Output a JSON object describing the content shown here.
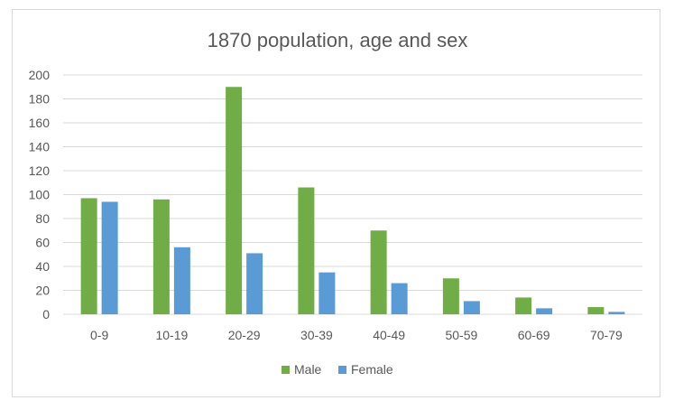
{
  "chart_data": {
    "type": "bar",
    "title": "1870 population, age and sex",
    "xlabel": "",
    "ylabel": "",
    "categories": [
      "0-9",
      "10-19",
      "20-29",
      "30-39",
      "40-49",
      "50-59",
      "60-69",
      "70-79"
    ],
    "series": [
      {
        "name": "Male",
        "color": "#70ad47",
        "values": [
          97,
          96,
          190,
          106,
          70,
          30,
          14,
          6
        ]
      },
      {
        "name": "Female",
        "color": "#5b9bd5",
        "values": [
          94,
          56,
          51,
          35,
          26,
          11,
          5,
          2
        ]
      }
    ],
    "ylim": [
      0,
      200
    ],
    "yticks": [
      0,
      20,
      40,
      60,
      80,
      100,
      120,
      140,
      160,
      180,
      200
    ],
    "grid": true,
    "legend": "bottom"
  }
}
